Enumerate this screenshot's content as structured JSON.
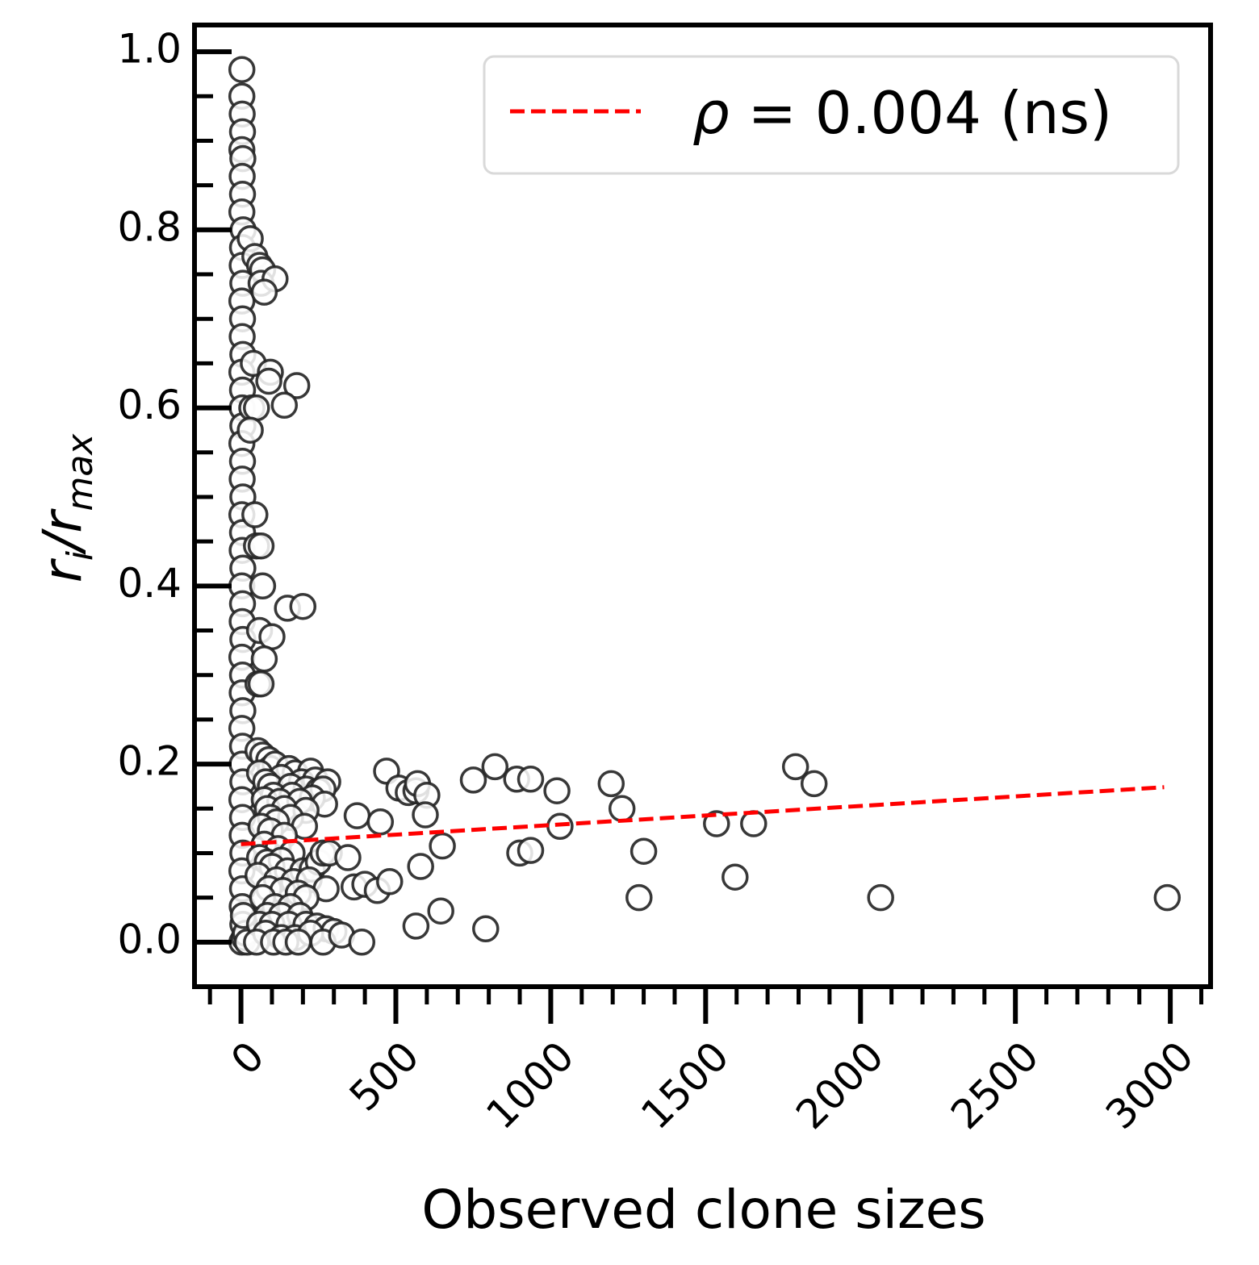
{
  "chart_data": {
    "type": "scatter",
    "title": "",
    "xlabel": "Observed clone sizes",
    "ylabel_base": "r",
    "ylabel_sub_num": "i",
    "ylabel_slash": "/",
    "ylabel_sub_den": "max",
    "xlim": [
      -150,
      3130
    ],
    "ylim": [
      -0.05,
      1.03
    ],
    "x_ticks": [
      0,
      500,
      1000,
      1500,
      2000,
      2500,
      3000
    ],
    "x_tick_labels": [
      "0",
      "500",
      "1000",
      "1500",
      "2000",
      "2500",
      "3000"
    ],
    "y_ticks": [
      0.0,
      0.2,
      0.4,
      0.6,
      0.8,
      1.0
    ],
    "y_tick_labels": [
      "0.0",
      "0.2",
      "0.4",
      "0.6",
      "0.8",
      "1.0"
    ],
    "grid": false,
    "legend_position": "top-right",
    "legend": {
      "symbol": "ρ",
      "text": " = 0.004 (ns)",
      "color": "#ff0000",
      "style": "dashed"
    },
    "marker": {
      "edge_color": "#222222",
      "fill_color": "#ffffff"
    },
    "trend_line": {
      "x": [
        0,
        2980
      ],
      "y": [
        0.11,
        0.174
      ]
    },
    "points": [
      [
        3,
        0.98
      ],
      [
        3,
        0.95
      ],
      [
        4,
        0.93
      ],
      [
        5,
        0.91
      ],
      [
        3,
        0.89
      ],
      [
        6,
        0.88
      ],
      [
        4,
        0.86
      ],
      [
        5,
        0.84
      ],
      [
        3,
        0.82
      ],
      [
        7,
        0.8
      ],
      [
        5,
        0.78
      ],
      [
        4,
        0.76
      ],
      [
        6,
        0.74
      ],
      [
        3,
        0.72
      ],
      [
        5,
        0.7
      ],
      [
        4,
        0.68
      ],
      [
        6,
        0.66
      ],
      [
        3,
        0.64
      ],
      [
        5,
        0.62
      ],
      [
        4,
        0.6
      ],
      [
        6,
        0.58
      ],
      [
        3,
        0.56
      ],
      [
        5,
        0.54
      ],
      [
        4,
        0.52
      ],
      [
        6,
        0.5
      ],
      [
        3,
        0.48
      ],
      [
        5,
        0.46
      ],
      [
        4,
        0.44
      ],
      [
        6,
        0.42
      ],
      [
        3,
        0.4
      ],
      [
        5,
        0.38
      ],
      [
        4,
        0.36
      ],
      [
        6,
        0.34
      ],
      [
        3,
        0.32
      ],
      [
        5,
        0.3
      ],
      [
        4,
        0.28
      ],
      [
        6,
        0.26
      ],
      [
        3,
        0.24
      ],
      [
        5,
        0.22
      ],
      [
        4,
        0.2
      ],
      [
        6,
        0.18
      ],
      [
        3,
        0.16
      ],
      [
        5,
        0.14
      ],
      [
        4,
        0.12
      ],
      [
        6,
        0.1
      ],
      [
        3,
        0.08
      ],
      [
        5,
        0.06
      ],
      [
        4,
        0.04
      ],
      [
        6,
        0.02
      ],
      [
        3,
        0.0
      ],
      [
        10,
        0.005
      ],
      [
        15,
        0.01
      ],
      [
        20,
        0.0
      ],
      [
        8,
        0.03
      ],
      [
        30,
        0.79
      ],
      [
        45,
        0.77
      ],
      [
        60,
        0.76
      ],
      [
        70,
        0.755
      ],
      [
        65,
        0.74
      ],
      [
        110,
        0.745
      ],
      [
        75,
        0.73
      ],
      [
        40,
        0.65
      ],
      [
        95,
        0.64
      ],
      [
        90,
        0.63
      ],
      [
        180,
        0.625
      ],
      [
        140,
        0.603
      ],
      [
        35,
        0.6
      ],
      [
        50,
        0.6
      ],
      [
        30,
        0.575
      ],
      [
        45,
        0.48
      ],
      [
        50,
        0.445
      ],
      [
        65,
        0.445
      ],
      [
        70,
        0.4
      ],
      [
        150,
        0.375
      ],
      [
        200,
        0.377
      ],
      [
        60,
        0.35
      ],
      [
        100,
        0.343
      ],
      [
        75,
        0.318
      ],
      [
        55,
        0.29
      ],
      [
        65,
        0.29
      ],
      [
        55,
        0.215
      ],
      [
        70,
        0.21
      ],
      [
        90,
        0.205
      ],
      [
        95,
        0.195
      ],
      [
        110,
        0.2
      ],
      [
        155,
        0.195
      ],
      [
        175,
        0.19
      ],
      [
        225,
        0.192
      ],
      [
        60,
        0.19
      ],
      [
        130,
        0.185
      ],
      [
        80,
        0.18
      ],
      [
        195,
        0.18
      ],
      [
        240,
        0.182
      ],
      [
        280,
        0.18
      ],
      [
        95,
        0.175
      ],
      [
        160,
        0.175
      ],
      [
        210,
        0.172
      ],
      [
        250,
        0.17
      ],
      [
        265,
        0.172
      ],
      [
        105,
        0.165
      ],
      [
        165,
        0.165
      ],
      [
        230,
        0.162
      ],
      [
        75,
        0.16
      ],
      [
        125,
        0.158
      ],
      [
        190,
        0.158
      ],
      [
        270,
        0.155
      ],
      [
        85,
        0.15
      ],
      [
        140,
        0.15
      ],
      [
        210,
        0.148
      ],
      [
        95,
        0.14
      ],
      [
        160,
        0.14
      ],
      [
        115,
        0.135
      ],
      [
        65,
        0.13
      ],
      [
        205,
        0.13
      ],
      [
        95,
        0.125
      ],
      [
        140,
        0.12
      ],
      [
        75,
        0.11
      ],
      [
        120,
        0.105
      ],
      [
        165,
        0.1
      ],
      [
        60,
        0.095
      ],
      [
        85,
        0.09
      ],
      [
        130,
        0.092
      ],
      [
        100,
        0.085
      ],
      [
        150,
        0.08
      ],
      [
        55,
        0.075
      ],
      [
        200,
        0.08
      ],
      [
        230,
        0.082
      ],
      [
        250,
        0.09
      ],
      [
        265,
        0.1
      ],
      [
        285,
        0.1
      ],
      [
        345,
        0.095
      ],
      [
        115,
        0.07
      ],
      [
        170,
        0.068
      ],
      [
        220,
        0.07
      ],
      [
        90,
        0.06
      ],
      [
        135,
        0.058
      ],
      [
        185,
        0.055
      ],
      [
        275,
        0.06
      ],
      [
        70,
        0.05
      ],
      [
        210,
        0.05
      ],
      [
        110,
        0.04
      ],
      [
        160,
        0.04
      ],
      [
        85,
        0.03
      ],
      [
        130,
        0.03
      ],
      [
        190,
        0.03
      ],
      [
        60,
        0.02
      ],
      [
        100,
        0.02
      ],
      [
        155,
        0.02
      ],
      [
        210,
        0.02
      ],
      [
        245,
        0.018
      ],
      [
        275,
        0.015
      ],
      [
        300,
        0.012
      ],
      [
        80,
        0.01
      ],
      [
        130,
        0.005
      ],
      [
        175,
        0.005
      ],
      [
        225,
        0.01
      ],
      [
        265,
        0.0
      ],
      [
        325,
        0.008
      ],
      [
        50,
        0.0
      ],
      [
        105,
        0.0
      ],
      [
        145,
        0.0
      ],
      [
        185,
        0.0
      ],
      [
        390,
        0.0
      ],
      [
        365,
        0.062
      ],
      [
        400,
        0.065
      ],
      [
        440,
        0.058
      ],
      [
        480,
        0.068
      ],
      [
        375,
        0.142
      ],
      [
        450,
        0.135
      ],
      [
        470,
        0.192
      ],
      [
        510,
        0.173
      ],
      [
        540,
        0.168
      ],
      [
        565,
        0.17
      ],
      [
        570,
        0.178
      ],
      [
        600,
        0.165
      ],
      [
        595,
        0.143
      ],
      [
        580,
        0.085
      ],
      [
        565,
        0.018
      ],
      [
        650,
        0.108
      ],
      [
        645,
        0.035
      ],
      [
        750,
        0.182
      ],
      [
        820,
        0.197
      ],
      [
        890,
        0.183
      ],
      [
        935,
        0.183
      ],
      [
        1020,
        0.17
      ],
      [
        900,
        0.1
      ],
      [
        935,
        0.103
      ],
      [
        790,
        0.015
      ],
      [
        1030,
        0.13
      ],
      [
        1195,
        0.178
      ],
      [
        1230,
        0.15
      ],
      [
        1300,
        0.102
      ],
      [
        1285,
        0.05
      ],
      [
        1535,
        0.133
      ],
      [
        1595,
        0.073
      ],
      [
        1655,
        0.133
      ],
      [
        1790,
        0.197
      ],
      [
        1850,
        0.178
      ],
      [
        2065,
        0.05
      ],
      [
        2990,
        0.05
      ]
    ]
  }
}
